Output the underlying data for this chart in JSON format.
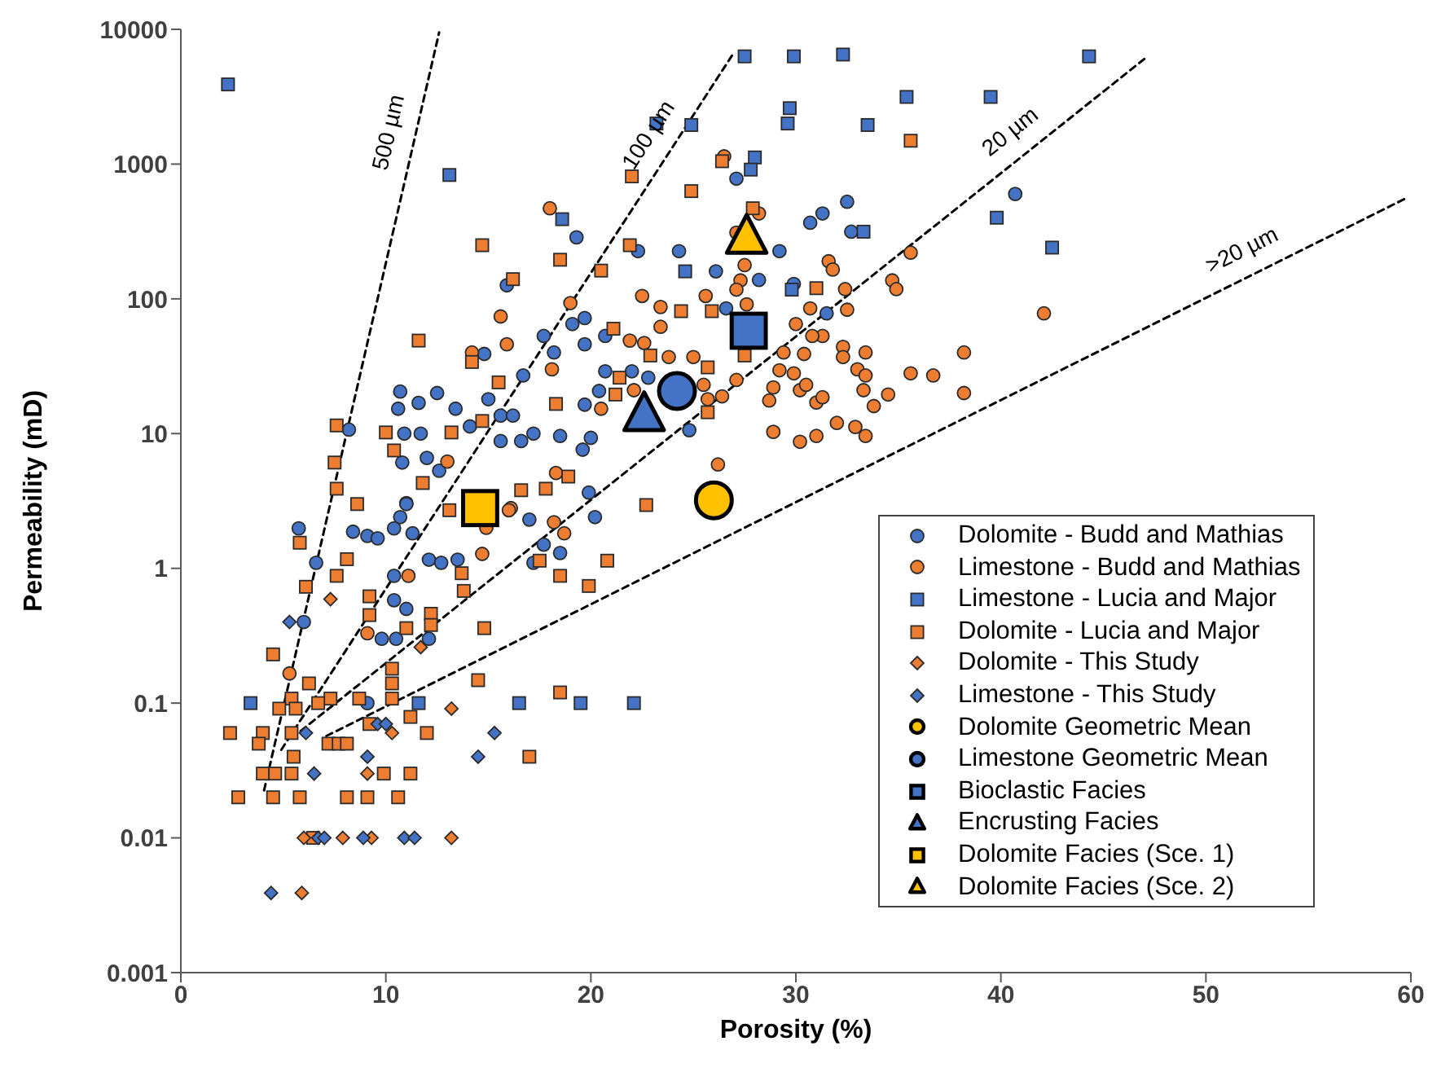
{
  "chart_data": {
    "type": "scatter",
    "xlabel": "Porosity (%)",
    "ylabel": "Permeability (mD)",
    "xlim": [
      0,
      60
    ],
    "xticks": [
      0,
      10,
      20,
      30,
      40,
      50,
      60
    ],
    "ylim": [
      0.001,
      10000
    ],
    "yticks": [
      0.001,
      0.01,
      0.1,
      1,
      10,
      100,
      1000,
      10000
    ],
    "log": "y",
    "legend": "bottom right",
    "series": [
      {
        "name": "Dolomite - Budd and Mathias",
        "color": "#4472c4",
        "marker": "circle",
        "x": [
          19.3,
          15.9,
          19.7,
          19.1,
          17.7,
          14.8,
          19.7,
          16.7,
          18.2,
          12.5,
          10.7,
          11.6,
          10.6,
          13.4,
          15.6,
          15.0,
          16.2,
          14.1,
          10.9,
          11.7,
          17.2,
          15.6,
          16.6,
          18.5,
          8.2,
          10.8,
          12.0,
          12.6,
          19.6,
          11.0,
          17.0,
          19.9,
          5.75,
          27.1,
          32.5,
          30.7,
          31.3,
          40.7,
          32.7,
          22.3,
          24.3,
          29.2,
          26.1,
          28.2,
          29.9,
          31.5,
          26.6,
          20.7,
          22.0,
          22.8,
          20.7,
          20.4,
          19.7,
          20.0,
          24.8,
          20.2,
          6.6,
          6.0,
          8.4,
          9.1,
          9.6,
          10.4,
          11.0,
          10.7,
          11.3,
          12.1,
          12.7,
          10.4,
          10.4,
          11.0,
          9.8,
          10.5,
          12.1,
          9.1,
          13.5,
          18.5,
          17.7,
          17.2
        ],
        "values": [
          286,
          126,
          72,
          65,
          53,
          39,
          46,
          27,
          40,
          20,
          20.5,
          16.9,
          15.3,
          15.3,
          13.6,
          18,
          13.6,
          11.3,
          10,
          10,
          10,
          8.8,
          8.8,
          9.6,
          10.7,
          6.1,
          6.6,
          5.3,
          7.6,
          3.05,
          2.3,
          3.65,
          1.98,
          780,
          525,
          367,
          430,
          600,
          315,
          226,
          226,
          226,
          160,
          138,
          129,
          78,
          85,
          53,
          29,
          26,
          29,
          20.7,
          16.4,
          9.3,
          10.6,
          2.4,
          1.1,
          0.4,
          1.87,
          1.74,
          1.67,
          1.98,
          3.0,
          2.4,
          1.82,
          1.16,
          1.1,
          0.88,
          0.58,
          0.5,
          0.3,
          0.3,
          0.3,
          0.1,
          1.16,
          1.3,
          1.5,
          1.1
        ]
      },
      {
        "name": "Limestone - Budd and Mathias",
        "color": "#ed7d31",
        "marker": "circle",
        "x": [
          18.0,
          15.6,
          15.9,
          14.2,
          18.1,
          19.0,
          13.0,
          16.1,
          14.9,
          18.3,
          26.5,
          28.2,
          27.1,
          31.6,
          31.8,
          27.5,
          27.3,
          27.1,
          35.6,
          34.7,
          34.9,
          32.4,
          22.5,
          23.4,
          23.4,
          25.6,
          27.6,
          30.7,
          32.5,
          30.0,
          31.3,
          30.8,
          21.9,
          22.6,
          25.0,
          23.8,
          27.1,
          29.4,
          30.4,
          32.3,
          32.3,
          33.4,
          38.2,
          29.2,
          29.9,
          33.0,
          33.4,
          35.6,
          36.7,
          38.2,
          28.9,
          30.2,
          30.5,
          28.7,
          31.0,
          31.3,
          33.3,
          33.8,
          34.5,
          22.1,
          20.5,
          26.4,
          25.7,
          25.5,
          28.9,
          30.2,
          31.0,
          32.0,
          32.9,
          33.4,
          42.1,
          26.2,
          9.1,
          11.1,
          14.7,
          18.2,
          18.7,
          5.3,
          16.0
        ],
        "values": [
          470,
          74,
          46,
          40,
          30,
          93,
          6.2,
          2.8,
          2.0,
          5.1,
          1140,
          430,
          310,
          190,
          165,
          178,
          137,
          117,
          220,
          137,
          118,
          118,
          105,
          87,
          62,
          105,
          91,
          85,
          83,
          65,
          53,
          53,
          49,
          47,
          37,
          37,
          25,
          40,
          39,
          44,
          37,
          40,
          40,
          29.5,
          28,
          30,
          27,
          28,
          27,
          20,
          22,
          21,
          23,
          17.6,
          17,
          18.6,
          21,
          16,
          19.5,
          21,
          15.3,
          18.9,
          18,
          23,
          10.3,
          8.7,
          9.6,
          12,
          11.2,
          9.6,
          78,
          5.9,
          0.33,
          0.88,
          1.28,
          2.2,
          1.82,
          0.166,
          2.7
        ]
      },
      {
        "name": "Limestone - Lucia and Major",
        "color": "#4472c4",
        "marker": "square",
        "x": [
          2.3,
          13.1,
          18.6,
          27.5,
          29.9,
          32.3,
          44.3,
          23.2,
          24.9,
          29.7,
          29.6,
          35.4,
          39.5,
          33.5,
          28.0,
          27.8,
          39.8,
          42.5,
          33.3,
          24.6,
          29.8,
          3.4,
          11.6,
          16.5,
          19.5,
          22.1
        ],
        "values": [
          3900,
          830,
          390,
          6300,
          6300,
          6500,
          6300,
          2000,
          1950,
          2600,
          2000,
          3150,
          3150,
          1950,
          1120,
          910,
          400,
          240,
          315,
          160,
          117,
          0.1,
          0.1,
          0.1,
          0.1,
          0.1
        ]
      },
      {
        "name": "Dolomite - Lucia and Major",
        "color": "#ed7d31",
        "marker": "square",
        "x": [
          14.7,
          18.5,
          16.2,
          11.6,
          14.2,
          15.5,
          18.3,
          14.7,
          7.6,
          10.0,
          13.2,
          10.4,
          7.5,
          7.6,
          11.8,
          8.6,
          18.9,
          17.8,
          16.6,
          13.1,
          22.0,
          24.9,
          26.4,
          35.6,
          27.9,
          21.9,
          20.5,
          31.0,
          24.4,
          25.9,
          21.1,
          22.9,
          27.5,
          21.4,
          25.7,
          21.2,
          25.7,
          22.7,
          5.8,
          8.1,
          7.6,
          6.1,
          9.2,
          9.2,
          11.0,
          12.2,
          12.2,
          14.8,
          4.5,
          6.25,
          10.3,
          10.3,
          10.3,
          8.7,
          7.3,
          6.7,
          5.4,
          5.6,
          4.8,
          11.2,
          14.5,
          18.5,
          9.2,
          12.0,
          2.4,
          4.0,
          5.4,
          3.8,
          7.2,
          7.7,
          8.1,
          5.5,
          17.0,
          4.0,
          4.6,
          5.4,
          9.9,
          11.2,
          2.8,
          4.5,
          5.8,
          8.1,
          9.1,
          10.6,
          6.45,
          20.8,
          19.9,
          17.5,
          18.5,
          13.8,
          13.7
        ],
        "values": [
          250,
          195,
          140,
          49,
          34,
          24,
          16.6,
          12.4,
          11.5,
          10.2,
          10.2,
          7.5,
          6.1,
          3.9,
          4.3,
          3.0,
          4.8,
          3.9,
          3.8,
          2.7,
          810,
          630,
          1050,
          1490,
          470,
          250,
          162,
          120,
          81,
          81,
          60,
          38,
          38,
          26,
          31,
          19.5,
          14.4,
          2.95,
          1.55,
          1.17,
          0.88,
          0.73,
          0.62,
          0.45,
          0.36,
          0.46,
          0.38,
          0.36,
          0.23,
          0.14,
          0.18,
          0.14,
          0.108,
          0.108,
          0.108,
          0.1,
          0.108,
          0.091,
          0.091,
          0.079,
          0.148,
          0.12,
          0.07,
          0.06,
          0.06,
          0.06,
          0.06,
          0.05,
          0.05,
          0.05,
          0.05,
          0.04,
          0.04,
          0.03,
          0.03,
          0.03,
          0.03,
          0.03,
          0.02,
          0.02,
          0.02,
          0.02,
          0.02,
          0.02,
          0.01,
          1.14,
          0.74,
          1.14,
          0.88,
          0.68,
          0.92
        ]
      },
      {
        "name": "Dolomite - This Study",
        "color": "#ed7d31",
        "marker": "diamond",
        "x": [
          7.3,
          11.7,
          13.2,
          10.3,
          9.1,
          6.0,
          7.9,
          9.3,
          13.2,
          5.9
        ],
        "values": [
          0.59,
          0.26,
          0.091,
          0.06,
          0.03,
          0.01,
          0.01,
          0.01,
          0.01,
          0.0039
        ]
      },
      {
        "name": "Limestone - This Study",
        "color": "#4472c4",
        "marker": "diamond",
        "x": [
          5.3,
          6.1,
          9.6,
          10.0,
          15.3,
          14.5,
          6.5,
          9.1,
          6.7,
          7.0,
          8.9,
          10.9,
          11.4,
          4.4
        ],
        "values": [
          0.4,
          0.06,
          0.07,
          0.07,
          0.06,
          0.04,
          0.03,
          0.04,
          0.01,
          0.01,
          0.01,
          0.01,
          0.01,
          0.0039
        ]
      },
      {
        "name": "Dolomite Geometric Mean",
        "color": "#ffc000",
        "marker": "circle",
        "x": [
          26.0
        ],
        "values": [
          3.2
        ]
      },
      {
        "name": "Limestone Geometric Mean",
        "color": "#4472c4",
        "marker": "circle",
        "x": [
          24.2
        ],
        "values": [
          20.7
        ]
      },
      {
        "name": "Bioclastic Facies",
        "color": "#4472c4",
        "marker": "square",
        "x": [
          27.7
        ],
        "values": [
          58
        ]
      },
      {
        "name": "Encrusting Facies",
        "color": "#4472c4",
        "marker": "triangle",
        "x": [
          22.6
        ],
        "values": [
          14
        ]
      },
      {
        "name": "Dolomite Facies (Sce. 1)",
        "color": "#ffc000",
        "marker": "square",
        "x": [
          14.6
        ],
        "values": [
          2.8
        ]
      },
      {
        "name": "Dolomite Facies (Sce. 2)",
        "color": "#ffc000",
        "marker": "triangle",
        "x": [
          27.6
        ],
        "values": [
          290
        ]
      },
      {
        "type": "line",
        "name": "500 µm",
        "color": "#000000",
        "line_style": "dashed",
        "marker": "none",
        "x": [
          4.06,
          12.6
        ],
        "values": [
          0.0225,
          9500
        ]
      },
      {
        "type": "line",
        "name": "100 µm",
        "color": "#000000",
        "line_style": "dashed",
        "marker": "none",
        "x": [
          4.9,
          27.0
        ],
        "values": [
          0.045,
          6800
        ]
      },
      {
        "type": "line",
        "name": "20 µm",
        "color": "#000000",
        "line_style": "dashed",
        "marker": "none",
        "x": [
          5.41,
          47.1
        ],
        "values": [
          0.055,
          6200
        ]
      },
      {
        "type": "line",
        "name": ">20 µm",
        "color": "#000000",
        "line_style": "dashed",
        "marker": "none",
        "x": [
          7.1,
          59.7
        ],
        "values": [
          0.057,
          552
        ]
      }
    ]
  }
}
